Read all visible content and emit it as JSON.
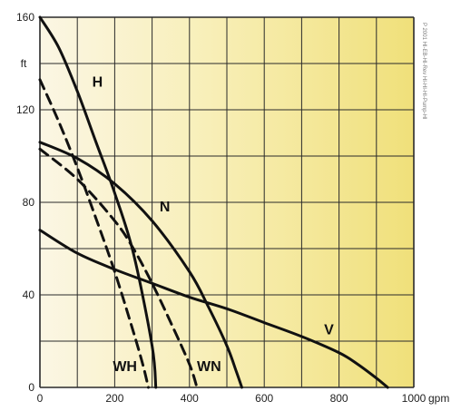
{
  "chart_data": {
    "type": "line",
    "xlabel": "",
    "ylabel": "",
    "xlim": [
      0,
      1000
    ],
    "ylim": [
      0,
      160
    ],
    "x_ticks": [
      0,
      200,
      400,
      600,
      800,
      1000
    ],
    "x_tick_labels": [
      "0",
      "200",
      "400",
      "600",
      "800",
      "1000"
    ],
    "x_unit": "gpm",
    "y_ticks": [
      0,
      40,
      80,
      120,
      160
    ],
    "y_tick_labels": [
      "0",
      "40",
      "80",
      "120",
      "160"
    ],
    "y_unit": "ft",
    "grid": true,
    "background": "gradient: light cream (left) to yellow (right)",
    "side_note": "P 2001 HI-EB-HI-Rev HI-HI-HI-Pump-HI",
    "series": [
      {
        "name": "H",
        "style": "solid",
        "x": [
          0,
          50,
          100,
          150,
          200,
          250,
          300,
          310
        ],
        "y": [
          160,
          147,
          128,
          106,
          84,
          58,
          18,
          0
        ],
        "label_at": [
          140,
          130
        ]
      },
      {
        "name": "N",
        "style": "solid",
        "x": [
          0,
          100,
          200,
          300,
          400,
          450,
          500,
          525,
          540
        ],
        "y": [
          106,
          99,
          88,
          72,
          50,
          35,
          18,
          7,
          0
        ],
        "label_at": [
          320,
          76
        ]
      },
      {
        "name": "V",
        "style": "solid",
        "x": [
          0,
          100,
          200,
          300,
          400,
          500,
          600,
          700,
          800,
          850,
          900,
          930
        ],
        "y": [
          68,
          58,
          51,
          45,
          39,
          34,
          28,
          22,
          15,
          10,
          4,
          0
        ],
        "label_at": [
          760,
          23
        ]
      },
      {
        "name": "WH",
        "style": "dashed",
        "x": [
          0,
          50,
          100,
          150,
          200,
          250,
          275,
          290
        ],
        "y": [
          133,
          115,
          95,
          73,
          50,
          24,
          10,
          0
        ],
        "label_at": [
          195,
          7
        ]
      },
      {
        "name": "WN",
        "style": "dashed",
        "x": [
          0,
          100,
          200,
          250,
          300,
          350,
          400,
          420
        ],
        "y": [
          103,
          90,
          72,
          60,
          45,
          28,
          10,
          0
        ],
        "label_at": [
          420,
          7
        ]
      }
    ]
  }
}
